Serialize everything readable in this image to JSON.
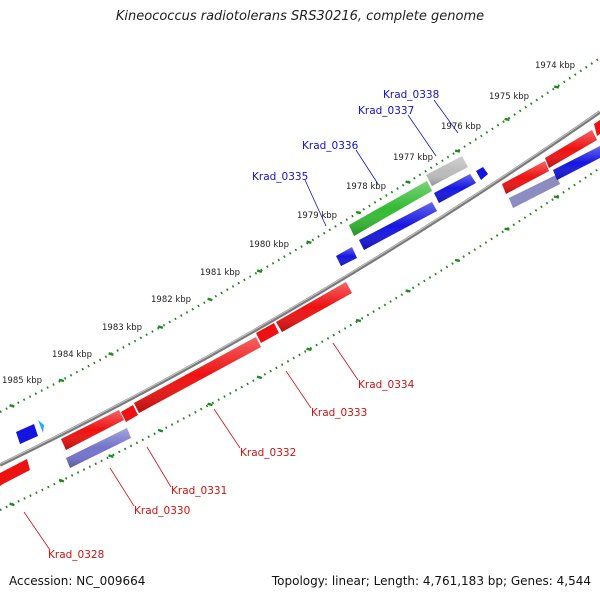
{
  "title": "Kineococcus radiotolerans SRS30216, complete genome",
  "footer": {
    "accession": "Accession: NC_009664",
    "summary": "Topology: linear; Length: 4,761,183 bp; Genes: 4,544"
  },
  "colors": {
    "forward_gene": "#ee1111",
    "reverse_gene": "#1515e0",
    "highlight_gene": "#33bb33",
    "pseudo_gene": "#bbbbbb",
    "purple_gene": "#7070cc",
    "cyan_gene": "#22aaff",
    "backbone": "#777777",
    "tick": "#228822",
    "label_forward": "#cc1111",
    "label_reverse": "#1111cc"
  },
  "kbp_labels": [
    "1974 kbp",
    "1975 kbp",
    "1976 kbp",
    "1977 kbp",
    "1978 kbp",
    "1979 kbp",
    "1980 kbp",
    "1981 kbp",
    "1982 kbp",
    "1983 kbp",
    "1984 kbp",
    "1985 kbp"
  ],
  "upper_gene_labels": [
    "Krad_0335",
    "Krad_0336",
    "Krad_0337",
    "Krad_0338"
  ],
  "lower_gene_labels": [
    "Krad_0328",
    "Krad_0330",
    "Krad_0331",
    "Krad_0332",
    "Krad_0333",
    "Krad_0334"
  ]
}
